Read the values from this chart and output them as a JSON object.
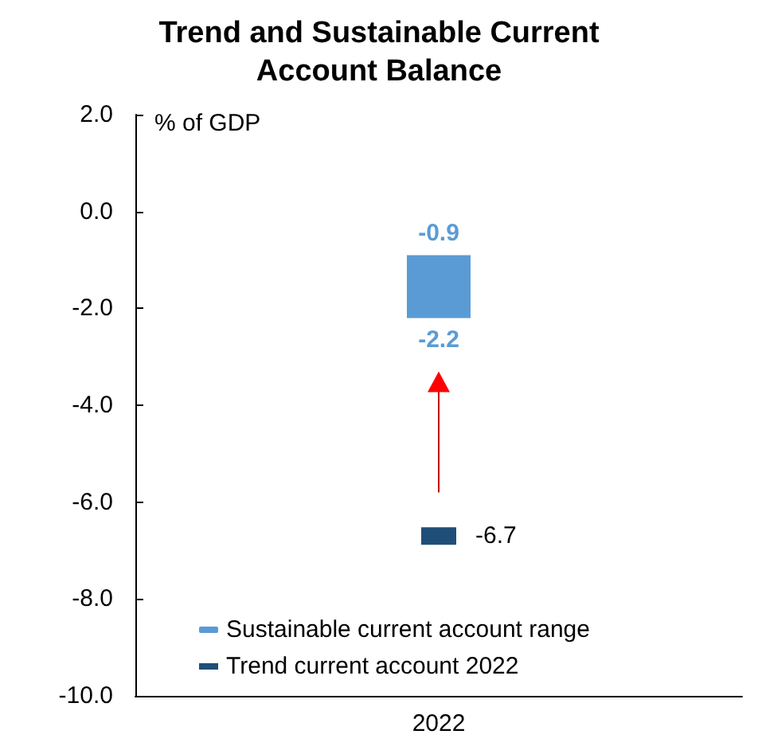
{
  "chart_data": {
    "type": "bar",
    "title": "Trend and Sustainable Current\nAccount Balance",
    "ylabel": "% of GDP",
    "categories": [
      "2022"
    ],
    "series": [
      {
        "name": "Sustainable current account range",
        "color": "#5b9bd5",
        "base": [
          -2.2
        ],
        "values": [
          1.3
        ]
      },
      {
        "name": "Trend current account 2022",
        "type": "scatter",
        "color": "#1f4e79",
        "values": [
          -6.7
        ],
        "value_labels": [
          "-6.7"
        ]
      }
    ],
    "annotations": [
      {
        "text": "-0.9",
        "x": "2022",
        "y": -0.9
      },
      {
        "text": "-2.2",
        "x": "2022",
        "y": -2.2
      }
    ],
    "ylim": [
      -10,
      2
    ],
    "yticks": [
      {
        "value": -10,
        "label": "-10.0"
      },
      {
        "value": -8,
        "label": "-8.0"
      },
      {
        "value": -6,
        "label": "-6.0"
      },
      {
        "value": -4,
        "label": "-4.0"
      },
      {
        "value": -2,
        "label": "-2.0"
      },
      {
        "value": 0,
        "label": "0.0"
      },
      {
        "value": 2,
        "label": "2.0"
      }
    ],
    "grid": false,
    "legend": "bottom left"
  }
}
